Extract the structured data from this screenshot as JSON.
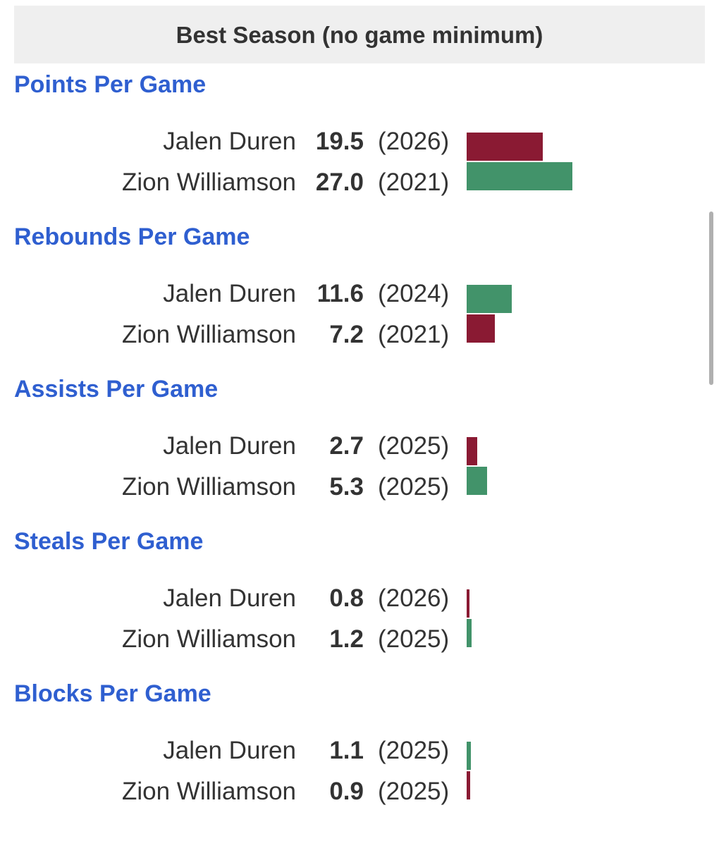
{
  "header": {
    "title": "Best Season (no game minimum)"
  },
  "sections": [
    {
      "title": "Points Per Game",
      "rows": [
        {
          "name": "Jalen Duren",
          "value": 19.5,
          "year": "(2026)",
          "color": "#8a1a33"
        },
        {
          "name": "Zion Williamson",
          "value": 27,
          "value_label": "27.0",
          "year": "(2021)",
          "color": "#42936a"
        }
      ]
    },
    {
      "title": "Rebounds Per Game",
      "rows": [
        {
          "name": "Jalen Duren",
          "value": 11.6,
          "year": "(2024)",
          "color": "#42936a"
        },
        {
          "name": "Zion Williamson",
          "value": 7.2,
          "year": "(2021)",
          "color": "#8a1a33"
        }
      ]
    },
    {
      "title": "Assists Per Game",
      "rows": [
        {
          "name": "Jalen Duren",
          "value": 2.7,
          "year": "(2025)",
          "color": "#8a1a33"
        },
        {
          "name": "Zion Williamson",
          "value": 5.3,
          "year": "(2025)",
          "color": "#42936a"
        }
      ]
    },
    {
      "title": "Steals Per Game",
      "rows": [
        {
          "name": "Jalen Duren",
          "value": 0.8,
          "year": "(2026)",
          "color": "#8a1a33"
        },
        {
          "name": "Zion Williamson",
          "value": 1.2,
          "year": "(2025)",
          "color": "#42936a"
        }
      ]
    },
    {
      "title": "Blocks Per Game",
      "rows": [
        {
          "name": "Jalen Duren",
          "value": 1.1,
          "year": "(2025)",
          "color": "#42936a"
        },
        {
          "name": "Zion Williamson",
          "value": 0.9,
          "year": "(2025)",
          "color": "#8a1a33"
        }
      ]
    }
  ]
}
